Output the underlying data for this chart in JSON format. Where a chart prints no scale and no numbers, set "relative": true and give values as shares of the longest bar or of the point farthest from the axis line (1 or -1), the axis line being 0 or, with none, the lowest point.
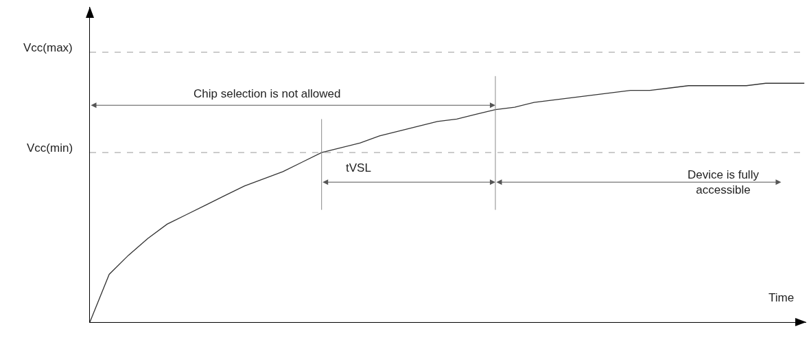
{
  "chart_data": {
    "type": "line",
    "relative": true,
    "xlabel": "Time",
    "categories": [
      null,
      null,
      null,
      null,
      null,
      null,
      null,
      null,
      null,
      null,
      null,
      null,
      null,
      null,
      null,
      null,
      null,
      null,
      null,
      null,
      null,
      null,
      null,
      null,
      null,
      null,
      null,
      null,
      null,
      null,
      null,
      null,
      null,
      null,
      null,
      null,
      null,
      null
    ],
    "series": [
      {
        "color": "#333333",
        "values": [
          0,
          0.2,
          0.28,
          0.35,
          0.41,
          0.45,
          0.49,
          0.53,
          0.57,
          0.6,
          0.63,
          0.67,
          0.71,
          0.73,
          0.75,
          0.78,
          0.8,
          0.82,
          0.84,
          0.85,
          0.87,
          0.89,
          0.9,
          0.92,
          0.93,
          0.94,
          0.95,
          0.96,
          0.97,
          0.97,
          0.98,
          0.99,
          0.99,
          0.99,
          0.99,
          1,
          1,
          1
        ]
      }
    ],
    "ref_lines": [
      {
        "axis": "y",
        "value": 1.13,
        "label": "Vcc(max)",
        "color": "#999999",
        "line_style": "dashed"
      },
      {
        "axis": "y",
        "value": 0.71,
        "label": "Vcc(min)",
        "color": "#999999",
        "line_style": "dashed"
      }
    ],
    "annotations": [
      "Chip selection is not allowed",
      "tVSL",
      "Device is fully accessible"
    ],
    "marker": "none",
    "line_style": "solid"
  }
}
